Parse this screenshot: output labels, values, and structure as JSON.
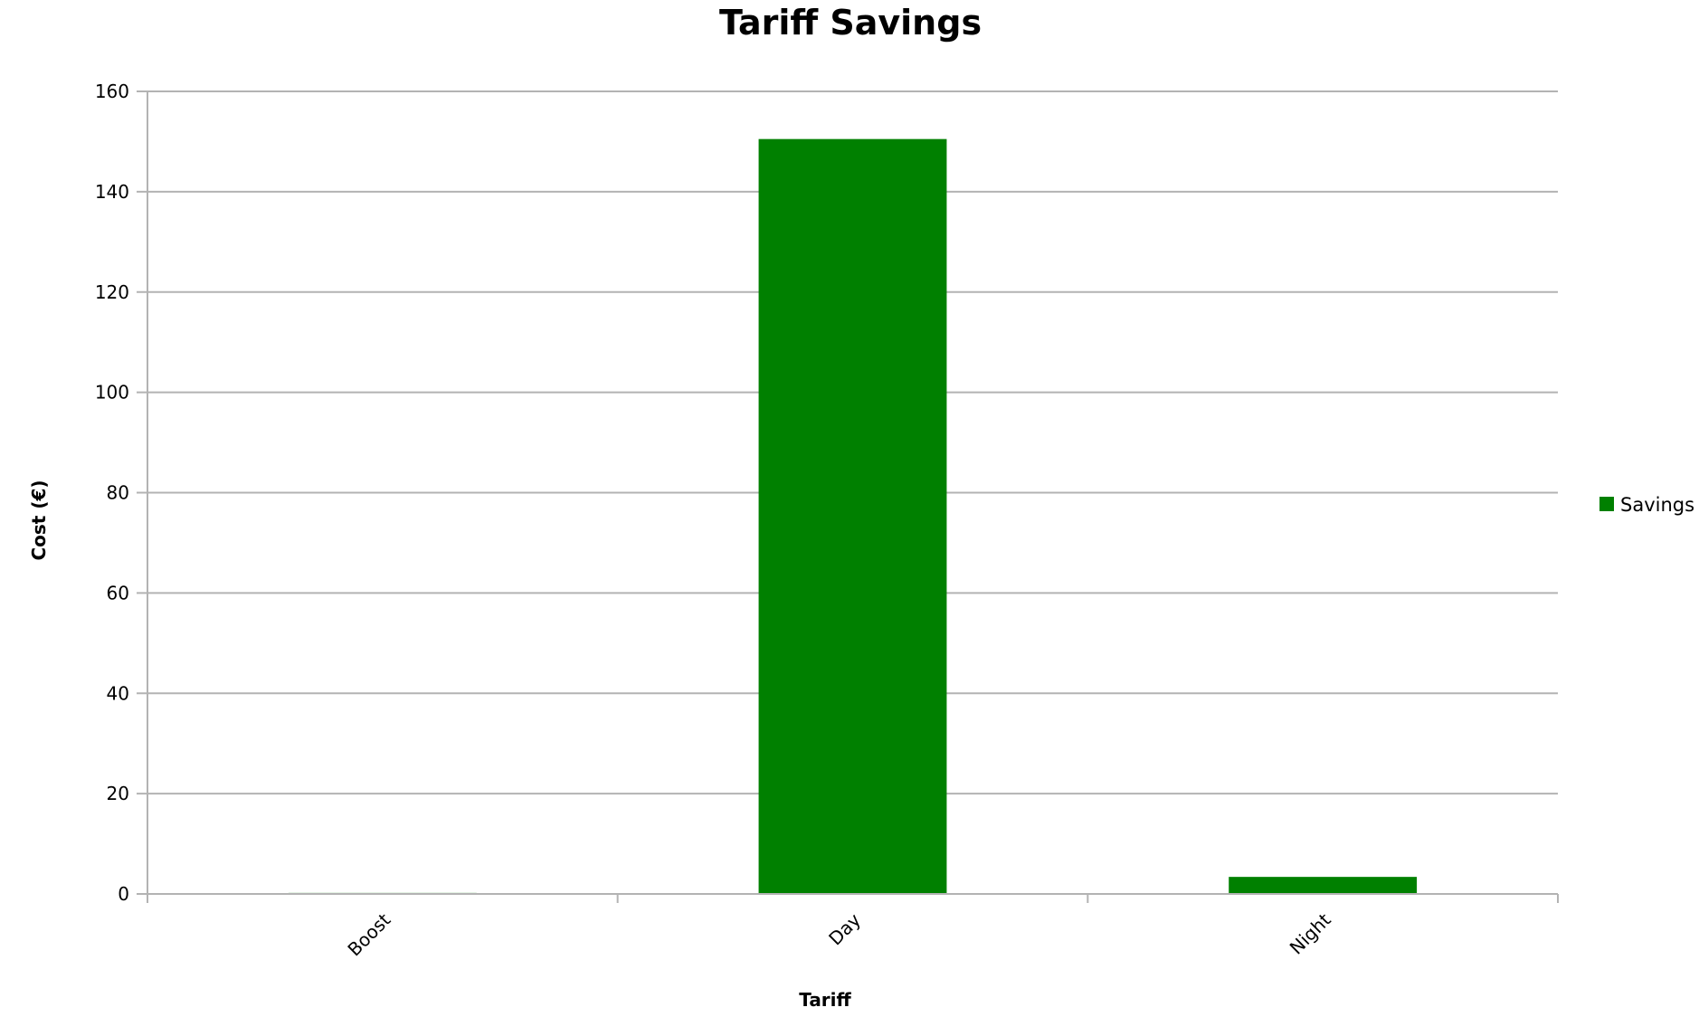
{
  "chart_data": {
    "type": "bar",
    "title": "Tariff Savings",
    "xlabel": "Tariff",
    "ylabel": "Cost (€)",
    "categories": [
      "Boost",
      "Day",
      "Night"
    ],
    "series": [
      {
        "name": "Savings",
        "color": "#008000",
        "values": [
          0.2,
          150.5,
          3.4
        ]
      }
    ],
    "ylim": [
      0,
      160
    ],
    "yticks": [
      0,
      20,
      40,
      60,
      80,
      100,
      120,
      140,
      160
    ],
    "grid": true,
    "legend_position": "right"
  }
}
